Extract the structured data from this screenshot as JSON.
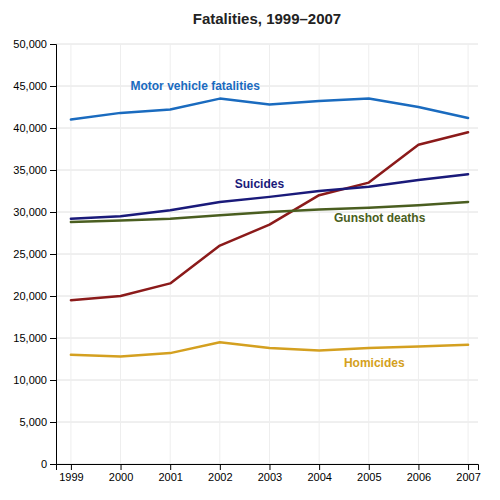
{
  "chart_data": {
    "type": "line",
    "title": "Fatalities, 1999–2007",
    "x": [
      1999,
      2000,
      2001,
      2002,
      2003,
      2004,
      2005,
      2006,
      2007
    ],
    "series": [
      {
        "color": "#1a6bbf",
        "values": [
          41000,
          41800,
          42200,
          43500,
          42800,
          43200,
          43500,
          42500,
          41200
        ]
      },
      {
        "color": "#8b1a1a",
        "values": [
          19500,
          20000,
          21500,
          26000,
          28500,
          32000,
          33500,
          38000,
          39500
        ]
      },
      {
        "color": "#1a1a7a",
        "values": [
          29200,
          29500,
          30200,
          31200,
          31800,
          32500,
          33000,
          33800,
          34500
        ]
      },
      {
        "color": "#4a5e20",
        "values": [
          28800,
          29000,
          29200,
          29600,
          30000,
          30300,
          30500,
          30800,
          31200
        ]
      },
      {
        "color": "#d4a020",
        "values": [
          13000,
          12800,
          13200,
          14500,
          13800,
          13500,
          13800,
          14000,
          14200
        ]
      }
    ],
    "annotations": [
      {
        "text": "Motor vehicle fatalities",
        "x": 2000.2,
        "y": 44500,
        "color": "#1a6bbf"
      },
      {
        "text": "Suicides",
        "x": 2002.3,
        "y": 32800,
        "color": "#1a1a7a"
      },
      {
        "text": "Gunshot deaths",
        "x": 2004.3,
        "y": 28800,
        "color": "#4a5e20"
      },
      {
        "text": "Homicides",
        "x": 2004.5,
        "y": 11500,
        "color": "#d4a020"
      }
    ],
    "xlim": [
      1998.7,
      2007.2
    ],
    "xticks": [
      1999,
      2000,
      2001,
      2002,
      2003,
      2004,
      2005,
      2006,
      2007
    ],
    "ylim": [
      0,
      50000
    ],
    "yticks": [
      0,
      {
        "value": 5000,
        "label": "5,000"
      },
      {
        "value": 10000,
        "label": "10,000"
      },
      {
        "value": 15000,
        "label": "15,000"
      },
      {
        "value": 20000,
        "label": "20,000"
      },
      {
        "value": 25000,
        "label": "25,000"
      },
      {
        "value": 30000,
        "label": "30,000"
      },
      {
        "value": 35000,
        "label": "35,000"
      },
      {
        "value": 40000,
        "label": "40,000"
      },
      {
        "value": 45000,
        "label": "45,000"
      },
      {
        "value": 50000,
        "label": "50,000"
      }
    ],
    "grid": true
  }
}
